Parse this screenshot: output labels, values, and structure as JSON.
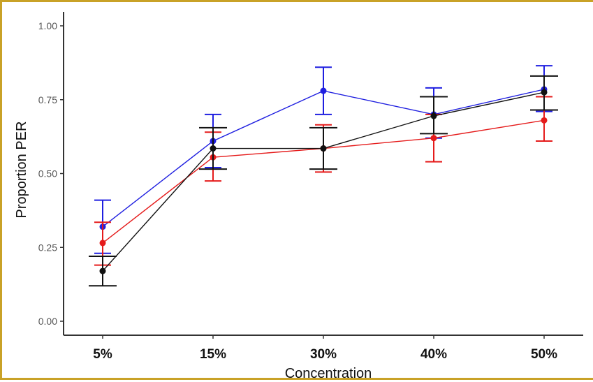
{
  "chart_data": {
    "type": "line",
    "title": "",
    "xlabel": "Concentration",
    "ylabel": "Proportion PER",
    "categories": [
      "5%",
      "15%",
      "30%",
      "40%",
      "50%"
    ],
    "ylim": [
      0,
      1
    ],
    "yticks": [
      "0.00",
      "0.25",
      "0.50",
      "0.75",
      "1.00"
    ],
    "yticks_values": [
      0,
      0.25,
      0.5,
      0.75,
      1.0
    ],
    "grid": false,
    "legend": "none",
    "series": [
      {
        "color": "#1f1fe0",
        "values": [
          0.32,
          0.61,
          0.78,
          0.7,
          0.785
        ],
        "err_low": [
          0.23,
          0.52,
          0.7,
          0.62,
          0.71
        ],
        "err_high": [
          0.41,
          0.7,
          0.86,
          0.79,
          0.865
        ]
      },
      {
        "color": "#e51b1b",
        "values": [
          0.265,
          0.555,
          0.585,
          0.62,
          0.68
        ],
        "err_low": [
          0.19,
          0.475,
          0.505,
          0.54,
          0.61
        ],
        "err_high": [
          0.335,
          0.64,
          0.665,
          0.7,
          0.76
        ]
      },
      {
        "color": "#111111",
        "values": [
          0.17,
          0.585,
          0.585,
          0.695,
          0.775
        ],
        "err_low": [
          0.12,
          0.515,
          0.515,
          0.635,
          0.715
        ],
        "err_high": [
          0.22,
          0.655,
          0.655,
          0.76,
          0.83
        ]
      }
    ]
  }
}
